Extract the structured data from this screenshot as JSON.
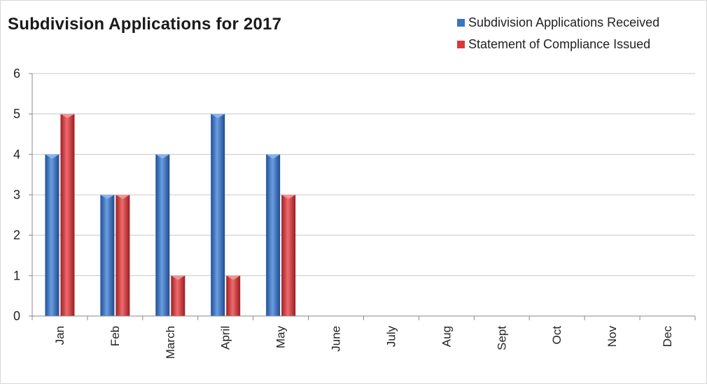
{
  "chart_data": {
    "type": "bar",
    "title": "Subdivision Applications for 2017",
    "categories": [
      "Jan",
      "Feb",
      "March",
      "April",
      "May",
      "June",
      "July",
      "Aug",
      "Sept",
      "Oct",
      "Nov",
      "Dec"
    ],
    "series": [
      {
        "name": "Subdivision Applications Received",
        "values": [
          4,
          3,
          4,
          5,
          4,
          null,
          null,
          null,
          null,
          null,
          null,
          null
        ],
        "color": "#3a74c4"
      },
      {
        "name": "Statement of Compliance Issued",
        "values": [
          5,
          3,
          1,
          1,
          3,
          null,
          null,
          null,
          null,
          null,
          null,
          null
        ],
        "color": "#d9393c"
      }
    ],
    "ylim": [
      0,
      6
    ],
    "yticks": [
      0,
      1,
      2,
      3,
      4,
      5,
      6
    ],
    "xlabel": "",
    "ylabel": "",
    "grid": true,
    "legend": "top-right"
  }
}
